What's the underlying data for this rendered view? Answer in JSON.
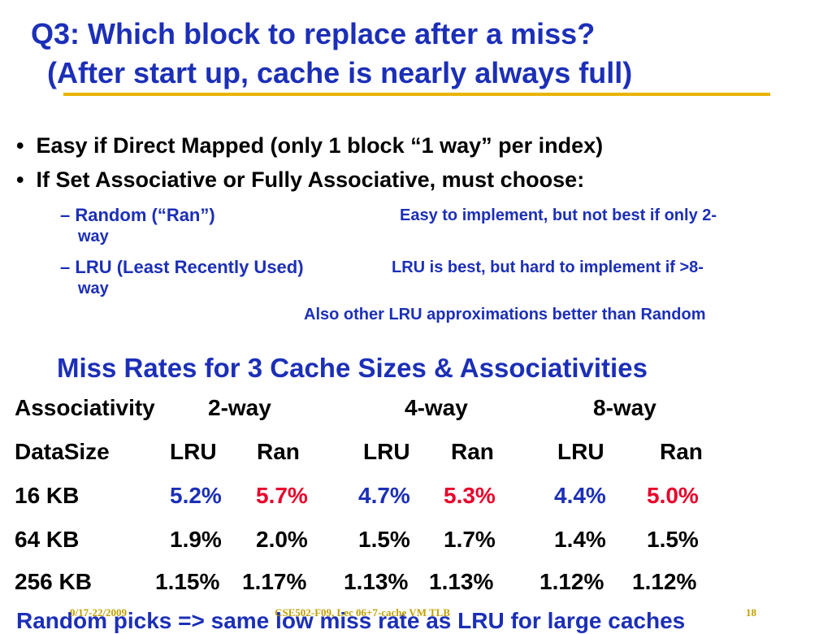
{
  "slide": {
    "title_line1": "Q3: Which block to replace after a miss?",
    "title_line2_open": "(",
    "title_line2_text": "After start up, cache is nearly always full",
    "title_line2_close": ")",
    "bullets": [
      "Easy if Direct Mapped (only 1 block “1 way” per index)",
      "If Set Associative or Fully Associative, must choose:"
    ],
    "sub_items": [
      {
        "dash": "–",
        "label": "Random (“Ran”)",
        "note": "Easy to implement,  but not best if only 2-",
        "wrap": "way"
      },
      {
        "dash": "–",
        "label": "LRU (Least Recently Used)",
        "note": "LRU is best, but hard to implement if >8-",
        "wrap": "way"
      }
    ],
    "extra_note": "Also other LRU approximations better than Random",
    "table_title": "Miss Rates for 3 Cache Sizes & Associativities",
    "table": {
      "assoc_label": "Associativity",
      "assoc_headers": [
        "2-way",
        "4-way",
        "8-way"
      ],
      "datasize_label": "DataSize",
      "policy_headers": [
        "LRU",
        "Ran",
        "LRU",
        "Ran",
        "LRU",
        "Ran"
      ],
      "rows": [
        {
          "size": "16 KB",
          "values": [
            "5.2%",
            "5.7%",
            "4.7%",
            "5.3%",
            "4.4%",
            "5.0%"
          ]
        },
        {
          "size": "64 KB",
          "values": [
            "1.9%",
            "2.0%",
            "1.5%",
            "1.7%",
            "1.4%",
            "1.5%"
          ]
        },
        {
          "size": "256 KB",
          "values": [
            "1.15%",
            "1.17%",
            "1.13%",
            "1.13%",
            "1.12%",
            "1.12%"
          ]
        }
      ]
    },
    "bottom_text": "Random picks => same low miss rate as LRU for large caches",
    "footer": {
      "date": "9/17-22/2009",
      "course": "CSE502-F09, Lec 06+7-cache VM TLB",
      "page": "18"
    },
    "colors": {
      "blue": "#1c2fb8",
      "red": "#e8002a",
      "underline": "#e8b400",
      "footer": "#c2a000"
    }
  }
}
